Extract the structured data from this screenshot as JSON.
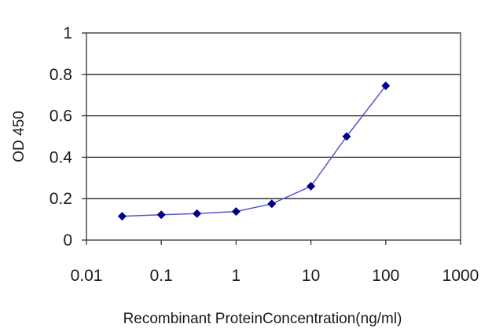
{
  "chart_data": {
    "type": "line",
    "title": "",
    "xlabel": "Recombinant ProteinConcentration(ng/ml)",
    "ylabel": "OD 450",
    "x_scale": "log",
    "xlim": [
      0.01,
      1000
    ],
    "ylim": [
      0,
      1
    ],
    "x_ticks": [
      0.01,
      0.1,
      1,
      10,
      100,
      1000
    ],
    "x_tick_labels": [
      "0.01",
      "0.1",
      "1",
      "10",
      "100",
      "1000"
    ],
    "y_ticks": [
      0,
      0.2,
      0.4,
      0.6,
      0.8,
      1
    ],
    "y_tick_labels": [
      "0",
      "0.2",
      "0.4",
      "0.6",
      "0.8",
      "1"
    ],
    "grid": "horizontal",
    "legend": "none",
    "series": [
      {
        "x": [
          0.03,
          0.1,
          0.3,
          1,
          3,
          10,
          30,
          100
        ],
        "y": [
          0.115,
          0.122,
          0.128,
          0.138,
          0.175,
          0.26,
          0.5,
          0.745
        ],
        "color": "#00008B",
        "line_color": "#5555cc",
        "marker": "diamond"
      }
    ]
  }
}
